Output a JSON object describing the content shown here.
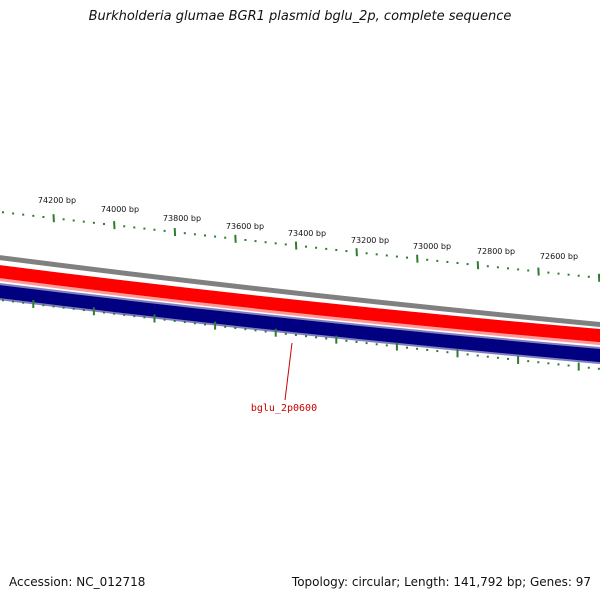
{
  "title": "Burkholderia glumae BGR1 plasmid bglu_2p, complete sequence",
  "footer": {
    "accession": "Accession: NC_012718",
    "summary": "Topology: circular; Length: 141,792 bp; Genes: 97"
  },
  "scale": {
    "labels": [
      "74200 bp",
      "74000 bp",
      "73800 bp",
      "73600 bp",
      "73400 bp",
      "73200 bp",
      "73000 bp",
      "72800 bp",
      "72600 bp"
    ]
  },
  "genes": [
    {
      "label": "bglu_2p0600",
      "strand": "minus"
    }
  ],
  "colors": {
    "outer_ring": "#7f7f7f",
    "forward_track": "#ff0000",
    "forward_highlight": "#ff9a9a",
    "reverse_track": "#000080",
    "reverse_edge": "#8080c0",
    "tick": "#2e7d2e",
    "gene_label": "#cc0000"
  }
}
